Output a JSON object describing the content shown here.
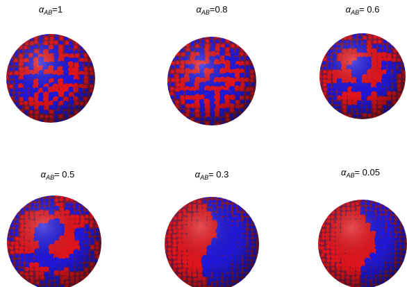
{
  "panels": [
    {
      "symbol": "α",
      "subscript": "AB",
      "value_text": "=1"
    },
    {
      "symbol": "α",
      "subscript": "AB",
      "value_text": "=0.8"
    },
    {
      "symbol": "α",
      "subscript": "AB",
      "value_text": "= 0.6"
    },
    {
      "symbol": "α",
      "subscript": "AB",
      "value_text": "= 0.5"
    },
    {
      "symbol": "α",
      "subscript": "AB",
      "value_text": "= 0.3"
    },
    {
      "symbol": "α",
      "subscript": "AB",
      "value_text": "= 0.05"
    }
  ]
}
